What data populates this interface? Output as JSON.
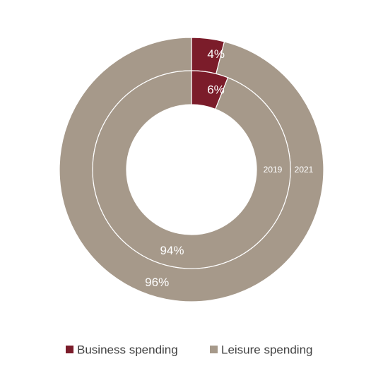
{
  "chart_data": {
    "type": "pie",
    "variant": "nested-donut",
    "title": "",
    "categories": [
      "Business spending",
      "Leisure spending"
    ],
    "colors": {
      "Business spending": "#7b1c2a",
      "Leisure spending": "#a6998a"
    },
    "series": [
      {
        "name": "2021",
        "values": [
          4,
          96
        ],
        "labels": [
          "4%",
          "96%"
        ]
      },
      {
        "name": "2019",
        "values": [
          6,
          94
        ],
        "labels": [
          "6%",
          "94%"
        ]
      }
    ],
    "legend": {
      "position": "bottom",
      "items": [
        {
          "label": "Business spending",
          "color": "#7b1c2a"
        },
        {
          "label": "Leisure spending",
          "color": "#a6998a"
        }
      ]
    }
  }
}
